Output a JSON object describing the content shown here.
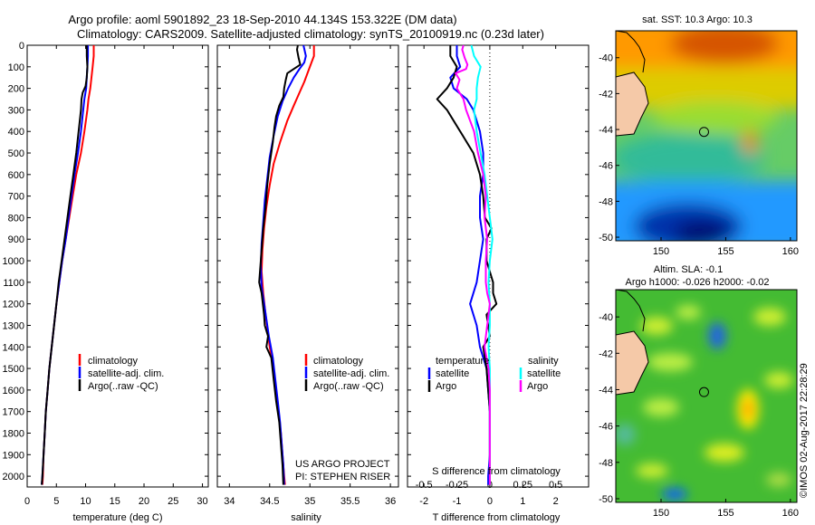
{
  "header": {
    "line1": "Argo profile: aoml 5901892_23 18-Sep-2010 44.134S 153.322E (DM data)",
    "line2": "Climatology: CARS2009. Satellite-adjusted climatology: synTS_20100919.nc (0.23d later)"
  },
  "colors": {
    "climatology": "#ff0000",
    "satellite": "#0000ff",
    "argo": "#000000",
    "salinity_satellite": "#00ffff",
    "salinity_argo": "#ff00ff",
    "land": "#f5c9a8"
  },
  "temperature_panel": {
    "xlabel": "temperature (deg C)",
    "legend": [
      "climatology",
      "satellite-adj. clim.",
      "Argo(..raw -QC)"
    ]
  },
  "salinity_panel": {
    "xlabel": "salinity",
    "legend": [
      "climatology",
      "satellite-adj. clim.",
      "Argo(..raw -QC)"
    ],
    "note1": "US ARGO PROJECT",
    "note2": "PI: STEPHEN RISER"
  },
  "difference_panel": {
    "xlabel_bottom": "T difference from climatology",
    "xlabel_top": "S difference from climatology",
    "legend_temperature_title": "temperature",
    "legend_salinity_title": "salinity",
    "legend_temperature_items": [
      "satellite",
      "Argo"
    ],
    "legend_salinity_items": [
      "satellite",
      "Argo"
    ]
  },
  "sst_map": {
    "title": "sat. SST: 10.3  Argo: 10.3",
    "x_ticks": [
      "150",
      "155",
      "160"
    ],
    "y_ticks": [
      "-40",
      "-42",
      "-44",
      "-46",
      "-48",
      "-50"
    ],
    "marker": {
      "lon": 153.322,
      "lat": -44.134
    }
  },
  "sla_map": {
    "title1": "Altim. SLA: -0.1",
    "title2": "Argo h1000: -0.026 h2000: -0.02",
    "x_ticks": [
      "150",
      "155",
      "160"
    ],
    "y_ticks": [
      "-40",
      "-42",
      "-44",
      "-46",
      "-48",
      "-50"
    ],
    "marker": {
      "lon": 153.322,
      "lat": -44.134
    }
  },
  "credit": "©IMOS 02-Aug-2017 22:28:29",
  "chart_data": [
    {
      "type": "line",
      "panel": "temperature",
      "xlabel": "temperature (deg C)",
      "xlim": [
        0,
        31
      ],
      "ylim": [
        2050,
        0
      ],
      "x_ticks": [
        0,
        5,
        10,
        15,
        20,
        25,
        30
      ],
      "y_ticks": [
        0,
        100,
        200,
        300,
        400,
        500,
        600,
        700,
        800,
        900,
        1000,
        1100,
        1200,
        1300,
        1400,
        1500,
        1600,
        1700,
        1800,
        1900,
        2000
      ],
      "series": [
        {
          "name": "climatology",
          "depth": [
            0,
            50,
            100,
            150,
            200,
            250,
            300,
            400,
            500,
            600,
            700,
            800,
            900,
            1000,
            1100,
            1200,
            1300,
            1400,
            1500,
            1600,
            1700,
            1800,
            1900,
            2000,
            2040
          ],
          "values": [
            11.4,
            11.4,
            11.2,
            11.0,
            10.8,
            10.5,
            10.3,
            9.8,
            9.2,
            8.4,
            7.8,
            7.2,
            6.6,
            6.0,
            5.5,
            5.0,
            4.6,
            4.2,
            3.8,
            3.5,
            3.2,
            3.0,
            2.8,
            2.7,
            2.6
          ]
        },
        {
          "name": "satellite-adj. clim.",
          "depth": [
            0,
            50,
            100,
            150,
            200,
            250,
            300,
            400,
            500,
            600,
            700,
            800,
            900,
            1000,
            1100,
            1200,
            1300,
            1400,
            1500,
            1600,
            1700,
            1800,
            1900,
            2000,
            2040
          ],
          "values": [
            10.4,
            10.4,
            10.3,
            10.2,
            10.1,
            9.8,
            9.6,
            9.2,
            8.7,
            8.1,
            7.6,
            7.1,
            6.6,
            6.0,
            5.5,
            5.0,
            4.6,
            4.2,
            3.8,
            3.5,
            3.2,
            3.0,
            2.8,
            2.6,
            2.5
          ]
        },
        {
          "name": "Argo(..raw -QC)",
          "depth": [
            0,
            50,
            100,
            150,
            190,
            220,
            250,
            300,
            400,
            500,
            600,
            700,
            800,
            900,
            1000,
            1100,
            1200,
            1300,
            1400,
            1500,
            1600,
            1700,
            1800,
            1900,
            2000,
            2040
          ],
          "values": [
            10.2,
            10.2,
            10.3,
            10.2,
            10.0,
            9.5,
            9.3,
            9.2,
            8.8,
            8.4,
            7.9,
            7.4,
            6.9,
            6.4,
            5.9,
            5.4,
            5.0,
            4.6,
            4.2,
            3.8,
            3.5,
            3.2,
            3.0,
            2.8,
            2.6,
            2.5
          ]
        }
      ]
    },
    {
      "type": "line",
      "panel": "salinity",
      "xlabel": "salinity",
      "xlim": [
        33.85,
        36.1
      ],
      "ylim": [
        2050,
        0
      ],
      "x_ticks": [
        34,
        34.5,
        35,
        35.5,
        36
      ],
      "series": [
        {
          "name": "climatology",
          "depth": [
            0,
            50,
            80,
            120,
            170,
            220,
            280,
            350,
            450,
            550,
            650,
            750,
            850,
            950,
            1050,
            1150,
            1250,
            1400,
            1500,
            1600,
            1700,
            1800,
            1900,
            2000,
            2040
          ],
          "values": [
            35.05,
            35.05,
            35.02,
            34.98,
            34.93,
            34.87,
            34.8,
            34.72,
            34.63,
            34.55,
            34.5,
            34.46,
            34.43,
            34.41,
            34.4,
            34.42,
            34.45,
            34.5,
            34.55,
            34.58,
            34.61,
            34.64,
            34.66,
            34.68,
            34.69
          ]
        },
        {
          "name": "satellite-adj. clim.",
          "depth": [
            0,
            50,
            80,
            110,
            150,
            200,
            260,
            330,
            420,
            520,
            620,
            720,
            820,
            920,
            1020,
            1120,
            1220,
            1350,
            1450,
            1550,
            1650,
            1750,
            1850,
            1950,
            2040
          ],
          "values": [
            34.92,
            34.95,
            34.93,
            34.87,
            34.8,
            34.73,
            34.66,
            34.6,
            34.55,
            34.5,
            34.47,
            34.44,
            34.42,
            34.4,
            34.39,
            34.4,
            34.44,
            34.49,
            34.54,
            34.57,
            34.6,
            34.63,
            34.65,
            34.67,
            34.68
          ]
        },
        {
          "name": "Argo(..raw -QC)",
          "depth": [
            0,
            20,
            60,
            90,
            110,
            130,
            160,
            200,
            240,
            280,
            330,
            380,
            450,
            550,
            650,
            750,
            850,
            950,
            1050,
            1100,
            1150,
            1250,
            1300,
            1350,
            1400,
            1450,
            1550,
            1650,
            1750,
            1850,
            1950,
            2040
          ],
          "values": [
            34.85,
            34.84,
            34.86,
            34.88,
            34.8,
            34.72,
            34.7,
            34.68,
            34.67,
            34.62,
            34.58,
            34.56,
            34.54,
            34.5,
            34.47,
            34.45,
            34.42,
            34.4,
            34.38,
            34.37,
            34.4,
            34.43,
            34.44,
            34.48,
            34.46,
            34.52,
            34.55,
            34.58,
            34.62,
            34.64,
            34.66,
            34.67
          ]
        }
      ]
    },
    {
      "type": "line",
      "panel": "difference",
      "xlabel": "T difference from climatology",
      "x2label": "S difference from climatology",
      "xlim": [
        -2.5,
        3.0
      ],
      "x2lim": [
        -0.625,
        0.75
      ],
      "ylim": [
        2050,
        0
      ],
      "x_ticks": [
        -2,
        -1,
        0,
        1,
        2
      ],
      "x2_ticks": [
        -0.5,
        -0.25,
        0,
        0.25,
        0.5
      ],
      "series": [
        {
          "name": "temperature satellite",
          "axis": "T",
          "depth": [
            0,
            50,
            100,
            150,
            200,
            250,
            300,
            400,
            500,
            600,
            700,
            800,
            900,
            1000,
            1100,
            1200,
            1300,
            1400,
            1500,
            1600,
            1700,
            1800,
            1900,
            2000,
            2040
          ],
          "values": [
            -1.0,
            -1.0,
            -0.9,
            -1.2,
            -1.1,
            -0.7,
            -0.5,
            -0.3,
            -0.2,
            -0.2,
            -0.3,
            -0.3,
            -0.2,
            -0.3,
            -0.4,
            -0.6,
            -0.4,
            -0.3,
            -0.1,
            -0.05,
            0,
            0,
            0,
            -0.05,
            -0.05
          ]
        },
        {
          "name": "temperature Argo",
          "depth": [
            0,
            50,
            100,
            150,
            200,
            250,
            300,
            350,
            400,
            500,
            600,
            700,
            800,
            850,
            900,
            1000,
            1050,
            1100,
            1150,
            1200,
            1250,
            1350,
            1400,
            1500,
            1600,
            1700,
            1800,
            1900,
            2000,
            2040
          ],
          "values": [
            -1.2,
            -1.2,
            -1.0,
            -1.1,
            -1.3,
            -1.6,
            -1.3,
            -1.1,
            -0.9,
            -0.5,
            -0.3,
            -0.2,
            -0.15,
            0.05,
            -0.1,
            -0.1,
            0.0,
            0.1,
            0.1,
            0.2,
            -0.1,
            0.0,
            -0.2,
            -0.1,
            -0.05,
            0,
            0,
            0,
            0,
            0
          ]
        },
        {
          "name": "salinity satellite",
          "axis": "S",
          "depth": [
            0,
            50,
            100,
            150,
            200,
            250,
            300,
            400,
            500,
            600,
            700,
            800,
            900,
            1000,
            1100,
            1200,
            1300,
            1400,
            1500,
            1600,
            1700,
            1800,
            1900,
            2000,
            2040
          ],
          "values": [
            -0.14,
            -0.12,
            -0.07,
            -0.09,
            -0.1,
            -0.1,
            -0.12,
            -0.1,
            -0.07,
            -0.04,
            -0.02,
            0.0,
            0.02,
            0.0,
            -0.01,
            0.0,
            0.0,
            -0.01,
            0.0,
            0.0,
            0.0,
            0.0,
            0.0,
            0.0,
            0.0
          ]
        },
        {
          "name": "salinity Argo",
          "depth": [
            0,
            20,
            60,
            90,
            110,
            130,
            160,
            200,
            250,
            300,
            350,
            400,
            500,
            600,
            700,
            800,
            900,
            1000,
            1100,
            1150,
            1200,
            1300,
            1400,
            1500,
            1600,
            1700,
            1800,
            1900,
            2000,
            2040
          ],
          "values": [
            -0.2,
            -0.21,
            -0.19,
            -0.17,
            -0.18,
            -0.26,
            -0.23,
            -0.25,
            -0.2,
            -0.18,
            -0.15,
            -0.12,
            -0.09,
            -0.05,
            -0.03,
            -0.04,
            -0.02,
            -0.03,
            -0.03,
            -0.02,
            0.0,
            -0.02,
            -0.04,
            -0.01,
            0.0,
            0.0,
            0.0,
            0.0,
            0.0,
            0.0
          ]
        }
      ]
    }
  ]
}
